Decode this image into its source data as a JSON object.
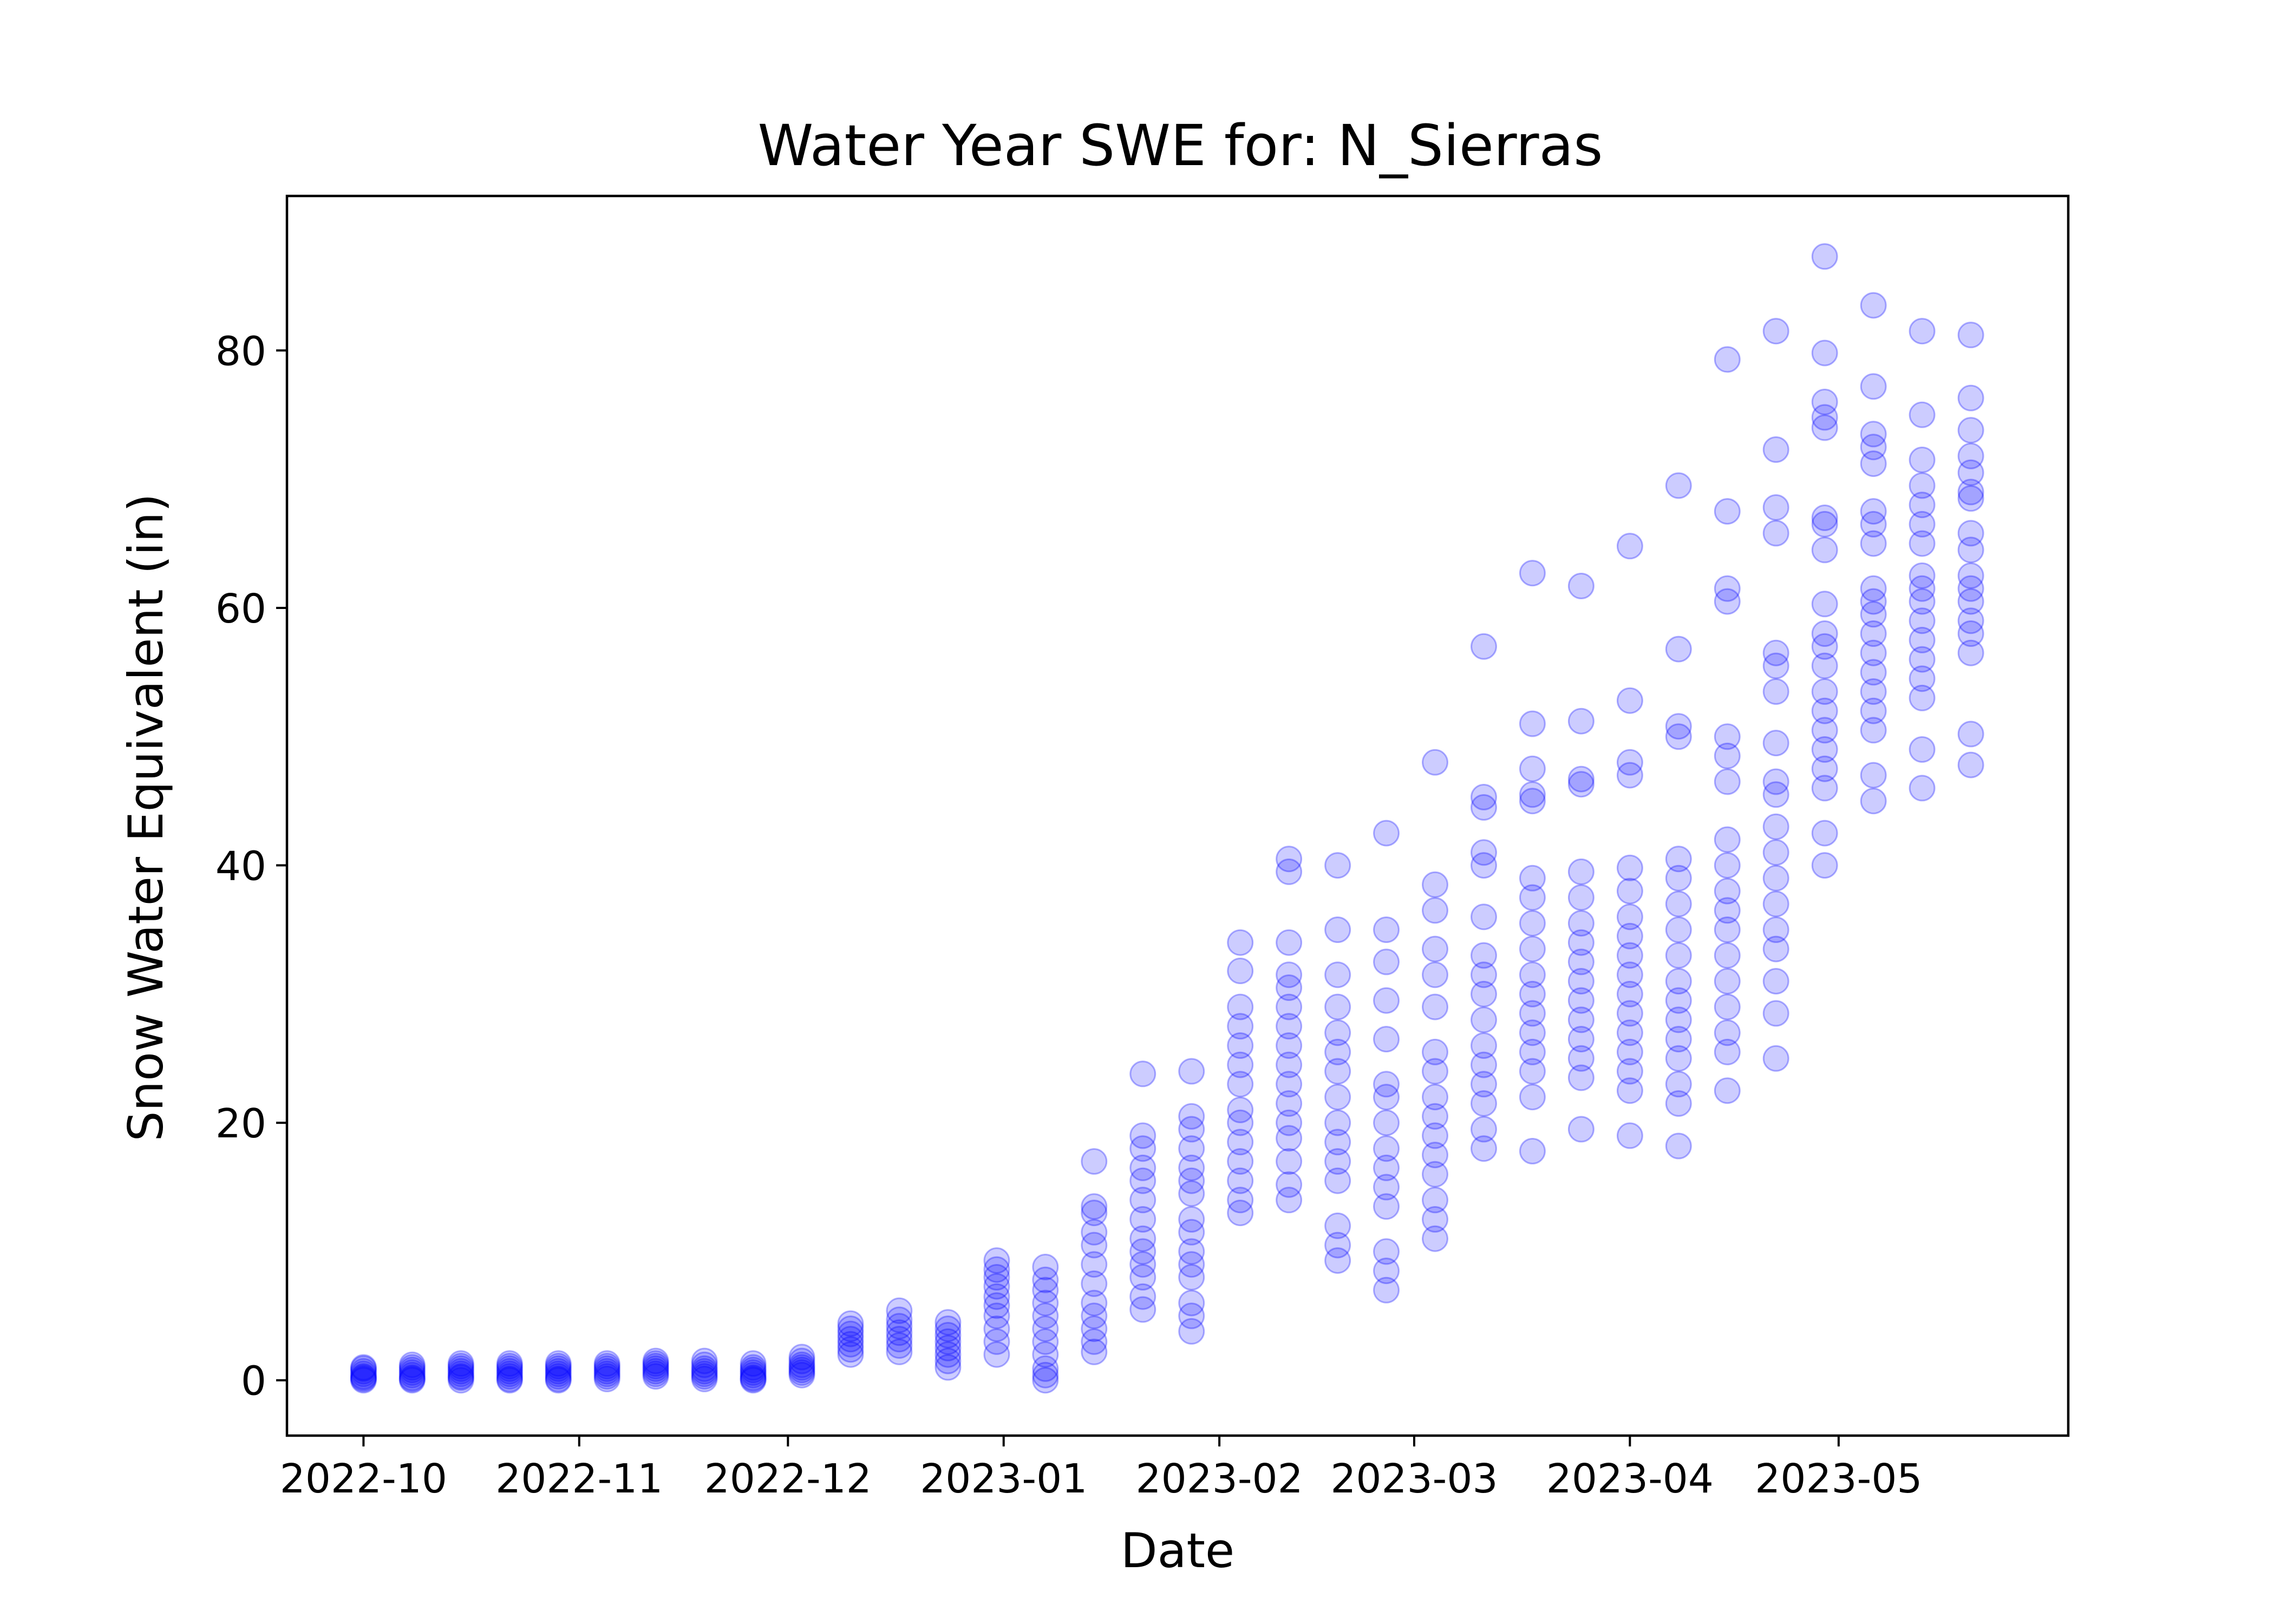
{
  "chart_data": {
    "type": "scatter",
    "title": "Water Year SWE for: N_Sierras",
    "xlabel": "Date",
    "ylabel": "Snow Water Equivalent (in)",
    "x_ticks": [
      "2022-10-01",
      "2022-11-01",
      "2022-12-01",
      "2023-01-01",
      "2023-02-01",
      "2023-03-01",
      "2023-04-01",
      "2023-05-01"
    ],
    "x_tick_labels": [
      "2022-10",
      "2022-11",
      "2022-12",
      "2023-01",
      "2023-02",
      "2023-03",
      "2023-04",
      "2023-05"
    ],
    "y_ticks": [
      0,
      20,
      40,
      60,
      80
    ],
    "xlim": [
      "2022-09-20",
      "2023-06-03"
    ],
    "ylim": [
      -4.3,
      92
    ],
    "grid": false,
    "marker_color": "#0000ff",
    "marker_alpha": 0.2,
    "point_groups": [
      {
        "date": "2022-10-01",
        "swe": [
          0,
          0.1,
          0.2,
          0.3,
          0.5,
          0.7,
          0.9,
          1.0
        ]
      },
      {
        "date": "2022-10-08",
        "swe": [
          0,
          0.1,
          0.2,
          0.4,
          0.6,
          0.8,
          1.0,
          1.2
        ]
      },
      {
        "date": "2022-10-15",
        "swe": [
          0,
          0.2,
          0.3,
          0.5,
          0.7,
          0.9,
          1.1,
          1.3
        ]
      },
      {
        "date": "2022-10-22",
        "swe": [
          0,
          0.1,
          0.3,
          0.5,
          0.7,
          0.9,
          1.1,
          1.3
        ]
      },
      {
        "date": "2022-10-29",
        "swe": [
          0,
          0.1,
          0.3,
          0.5,
          0.7,
          0.9,
          1.1,
          1.3
        ]
      },
      {
        "date": "2022-11-05",
        "swe": [
          0.1,
          0.3,
          0.5,
          0.7,
          0.9,
          1.1,
          1.3
        ]
      },
      {
        "date": "2022-11-12",
        "swe": [
          0.3,
          0.5,
          0.7,
          0.9,
          1.1,
          1.3,
          1.5
        ]
      },
      {
        "date": "2022-11-19",
        "swe": [
          0.1,
          0.3,
          0.5,
          0.7,
          0.9,
          1.2,
          1.5
        ]
      },
      {
        "date": "2022-11-26",
        "swe": [
          0,
          0.1,
          0.2,
          0.4,
          0.6,
          0.8,
          1.0,
          1.3
        ]
      },
      {
        "date": "2022-12-03",
        "swe": [
          0.4,
          0.6,
          0.8,
          1.0,
          1.2,
          1.5,
          1.8
        ]
      },
      {
        "date": "2022-12-10",
        "swe": [
          2,
          2.4,
          2.8,
          3.2,
          3.6,
          4,
          4.4
        ]
      },
      {
        "date": "2022-12-17",
        "swe": [
          2.2,
          2.7,
          3.2,
          3.7,
          4.2,
          4.7,
          5.4
        ]
      },
      {
        "date": "2022-12-24",
        "swe": [
          1,
          1.5,
          2,
          2.5,
          3,
          3.5,
          4,
          4.5
        ]
      },
      {
        "date": "2022-12-31",
        "swe": [
          2,
          3,
          4,
          5,
          5.8,
          6.5,
          7.3,
          8,
          8.6,
          9.3
        ]
      },
      {
        "date": "2023-01-07",
        "swe": [
          0,
          0.4,
          0.9,
          2,
          3,
          4,
          5,
          6,
          7,
          7.8,
          8.8
        ]
      },
      {
        "date": "2023-01-14",
        "swe": [
          2.2,
          3,
          4,
          5,
          6,
          7.5,
          9,
          10.5,
          11.5,
          13,
          13.5,
          17
        ]
      },
      {
        "date": "2023-01-21",
        "swe": [
          5.5,
          6.5,
          8,
          9,
          10,
          11,
          12.5,
          14,
          15.5,
          16.5,
          18,
          19,
          23.8
        ]
      },
      {
        "date": "2023-01-28",
        "swe": [
          3.8,
          5,
          6,
          8,
          9,
          10,
          11.5,
          12.5,
          14.5,
          15.5,
          16.5,
          18,
          19.5,
          20.5,
          24
        ]
      },
      {
        "date": "2023-02-04",
        "swe": [
          13,
          14,
          15.5,
          17,
          18.5,
          20,
          21,
          23,
          24.5,
          26,
          27.5,
          29,
          31.8,
          34
        ]
      },
      {
        "date": "2023-02-11",
        "swe": [
          14,
          15.2,
          17,
          18.8,
          20,
          21.5,
          23,
          24.5,
          26,
          27.5,
          29,
          30.5,
          31.5,
          34,
          39.5,
          40.5
        ]
      },
      {
        "date": "2023-02-18",
        "swe": [
          9.3,
          10.5,
          12,
          15.5,
          17,
          18.5,
          20,
          22,
          24,
          25.5,
          27,
          29,
          31.5,
          35,
          40
        ]
      },
      {
        "date": "2023-02-25",
        "swe": [
          7,
          8.5,
          10,
          13.5,
          15,
          16.5,
          18,
          20,
          22,
          23,
          26.5,
          29.5,
          32.5,
          35,
          42.5
        ]
      },
      {
        "date": "2023-03-04",
        "swe": [
          11,
          12.5,
          14,
          16,
          17.5,
          19,
          20.5,
          22,
          24,
          25.5,
          29,
          31.5,
          33.5,
          36.5,
          38.5,
          48
        ]
      },
      {
        "date": "2023-03-11",
        "swe": [
          18,
          19.5,
          21.5,
          23,
          24.5,
          26,
          28,
          30,
          31.5,
          33,
          36,
          40,
          41,
          44.5,
          45.3,
          57
        ]
      },
      {
        "date": "2023-03-18",
        "swe": [
          17.8,
          22,
          24,
          25.5,
          27,
          28.5,
          30,
          31.5,
          33.5,
          35.5,
          37.5,
          39,
          45,
          45.5,
          47.5,
          51,
          62.7
        ]
      },
      {
        "date": "2023-03-25",
        "swe": [
          19.5,
          23.5,
          25,
          26.5,
          28,
          29.5,
          31,
          32.5,
          34,
          35.5,
          37.5,
          39.5,
          46.3,
          46.7,
          51.2,
          61.7
        ]
      },
      {
        "date": "2023-04-01",
        "swe": [
          19,
          22.5,
          24,
          25.5,
          27,
          28.5,
          30,
          31.5,
          33,
          34.5,
          36,
          38,
          39.8,
          47,
          48,
          52.8,
          64.8
        ]
      },
      {
        "date": "2023-04-08",
        "swe": [
          18.2,
          21.5,
          23,
          25,
          26.5,
          28,
          29.5,
          31,
          33,
          35,
          37,
          39,
          40.5,
          50,
          50.8,
          56.8,
          69.5
        ]
      },
      {
        "date": "2023-04-15",
        "swe": [
          22.5,
          25.5,
          27,
          29,
          31,
          33,
          35,
          36.5,
          38,
          40,
          42,
          46.5,
          48.5,
          50,
          60.5,
          61.5,
          67.5,
          79.3
        ]
      },
      {
        "date": "2023-04-22",
        "swe": [
          25,
          28.5,
          31,
          33.5,
          35,
          37,
          39,
          41,
          43,
          45.5,
          46.5,
          49.5,
          53.5,
          55.5,
          56.5,
          65.8,
          67.8,
          72.3,
          81.5
        ]
      },
      {
        "date": "2023-04-29",
        "swe": [
          40,
          42.5,
          46,
          47.5,
          49,
          50.5,
          52,
          53.5,
          55.5,
          57,
          58,
          60.3,
          64.5,
          66.5,
          67,
          74,
          74.8,
          76,
          79.8,
          87.3
        ]
      },
      {
        "date": "2023-05-06",
        "swe": [
          45,
          47,
          50.5,
          52,
          53.5,
          55,
          56.5,
          58,
          59.5,
          60.5,
          61.5,
          65,
          66.5,
          67.5,
          71.2,
          72.5,
          73.5,
          77.2,
          83.5
        ]
      },
      {
        "date": "2023-05-13",
        "swe": [
          46,
          49,
          53,
          54.5,
          56,
          57.5,
          59,
          60.5,
          61.5,
          62.5,
          65,
          66.5,
          68,
          69.5,
          71.5,
          75,
          81.5
        ]
      },
      {
        "date": "2023-05-20",
        "swe": [
          47.8,
          50.2,
          56.5,
          58,
          59,
          60.5,
          61.5,
          62.5,
          64.5,
          65.8,
          68.5,
          69,
          70.5,
          71.8,
          73.8,
          76.3,
          81.2
        ]
      }
    ]
  }
}
